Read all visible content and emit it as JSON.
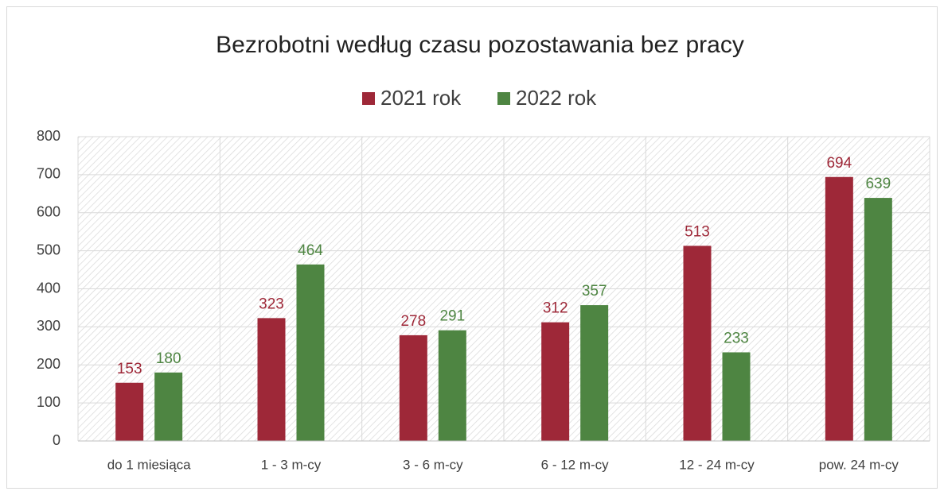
{
  "chart_data": {
    "type": "bar",
    "title": "Bezrobotni według czasu pozostawania bez pracy",
    "categories": [
      "do 1 miesiąca",
      "1 - 3 m-cy",
      "3 - 6 m-cy",
      "6 - 12 m-cy",
      "12 - 24 m-cy",
      "pow. 24 m-cy"
    ],
    "series": [
      {
        "name": "2021 rok",
        "color": "#9e2838",
        "values": [
          153,
          323,
          278,
          312,
          513,
          694
        ]
      },
      {
        "name": "2022 rok",
        "color": "#4e8542",
        "values": [
          180,
          464,
          291,
          357,
          233,
          639
        ]
      }
    ],
    "ylim": [
      0,
      800
    ],
    "yticks": [
      0,
      100,
      200,
      300,
      400,
      500,
      600,
      700,
      800
    ],
    "grid": true,
    "legend": "top"
  }
}
